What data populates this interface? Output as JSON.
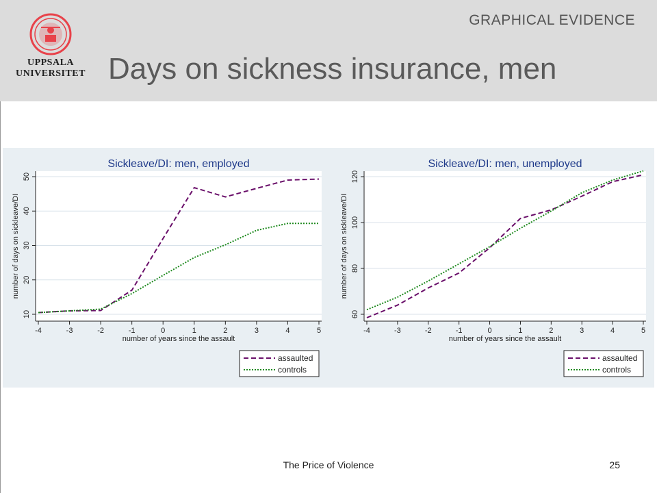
{
  "header": {
    "section_label": "GRAPHICAL EVIDENCE",
    "title": "Days on sickness insurance, men",
    "logo": {
      "line1": "UPPSALA",
      "line2": "UNIVERSITET",
      "color": "#e8424a"
    }
  },
  "colors": {
    "assaulted": "#6a0f6a",
    "controls": "#1f8a1f"
  },
  "chart_data": [
    {
      "type": "line",
      "title": "Sickleave/DI: men, employed",
      "xlabel": "number of years since the assault",
      "ylabel": "number of days on sickleave/DI",
      "x": [
        -4,
        -3,
        -2,
        -1,
        0,
        1,
        2,
        3,
        4,
        5
      ],
      "xlim": [
        -4,
        5
      ],
      "ylim": [
        10,
        50
      ],
      "yticks": [
        10,
        20,
        30,
        40,
        50
      ],
      "grid": true,
      "legend": "bottom-right",
      "series": [
        {
          "name": "assaulted",
          "style": "dashed",
          "values": [
            10.5,
            11.0,
            11.1,
            17.0,
            32.0,
            46.8,
            44.1,
            46.6,
            49.0,
            49.3
          ]
        },
        {
          "name": "controls",
          "style": "dotted",
          "values": [
            10.5,
            11.0,
            11.5,
            16.0,
            21.3,
            26.5,
            30.2,
            34.4,
            36.4,
            36.4
          ]
        }
      ]
    },
    {
      "type": "line",
      "title": "Sickleave/DI: men, unemployed",
      "xlabel": "number of years since the assault",
      "ylabel": "number of days on sickleave/DI",
      "x": [
        -4,
        -3,
        -2,
        -1,
        0,
        1,
        2,
        3,
        4,
        5
      ],
      "xlim": [
        -4,
        5
      ],
      "ylim": [
        60,
        120
      ],
      "yticks": [
        60,
        80,
        100,
        120
      ],
      "grid": true,
      "legend": "bottom-right",
      "series": [
        {
          "name": "assaulted",
          "style": "dashed",
          "values": [
            58.5,
            64.0,
            71.5,
            78.0,
            89.0,
            101.8,
            105.5,
            111.5,
            117.8,
            120.8
          ]
        },
        {
          "name": "controls",
          "style": "dotted",
          "values": [
            62.0,
            67.5,
            74.5,
            82.0,
            89.5,
            97.5,
            105.0,
            113.0,
            118.5,
            122.5
          ]
        }
      ]
    }
  ],
  "footer": {
    "text": "The Price of Violence",
    "page_number": "25"
  }
}
